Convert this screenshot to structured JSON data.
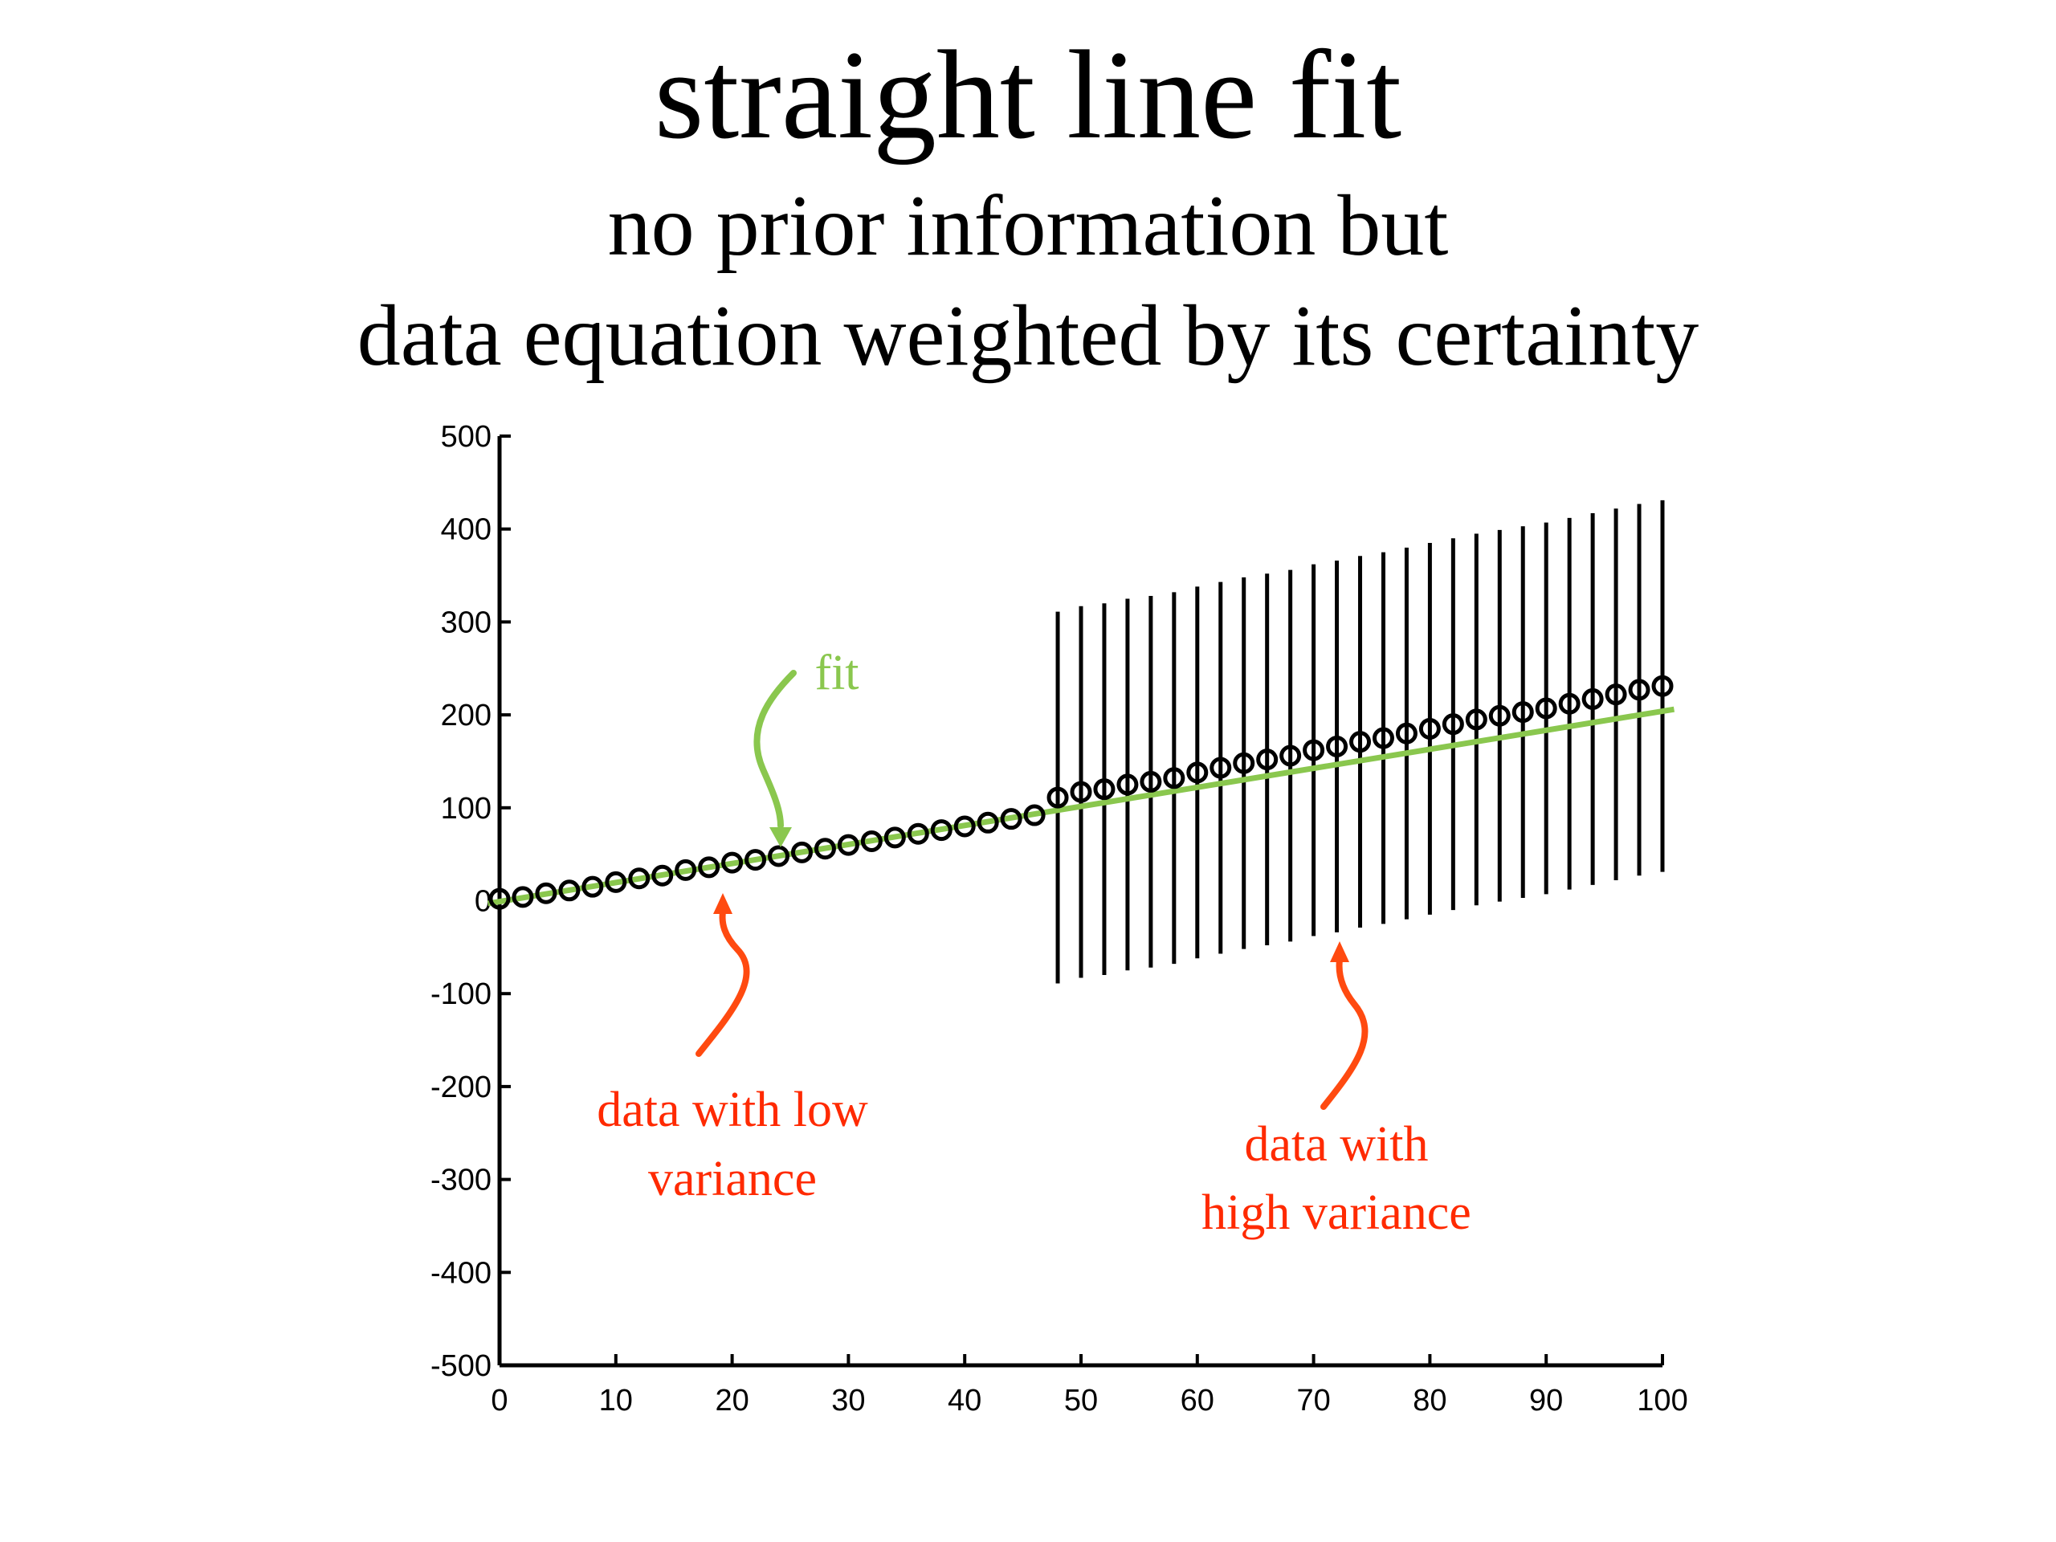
{
  "title": "straight line fit",
  "subtitle_line1": "no prior information but",
  "subtitle_line2": "data equation weighted by its certainty",
  "chart_data": {
    "type": "scatter",
    "xlim": [
      0,
      100
    ],
    "ylim": [
      -500,
      500
    ],
    "xticks": [
      0,
      10,
      20,
      30,
      40,
      50,
      60,
      70,
      80,
      90,
      100
    ],
    "yticks": [
      500,
      400,
      300,
      200,
      100,
      0,
      -100,
      -200,
      -300,
      -400,
      -500
    ],
    "grid": false,
    "series": [
      {
        "x": [
          0,
          2,
          4,
          6,
          8,
          10,
          12,
          14,
          16,
          18,
          20,
          22,
          24,
          26,
          28,
          30,
          32,
          34,
          36,
          38,
          40,
          42,
          44,
          46,
          48,
          50,
          52,
          54,
          56,
          58,
          60,
          62,
          64,
          66,
          68,
          70,
          72,
          74,
          76,
          78,
          80,
          82,
          84,
          86,
          88,
          90,
          92,
          94,
          96,
          98,
          100
        ],
        "y": [
          2,
          4,
          8,
          11,
          15,
          20,
          24,
          27,
          33,
          36,
          41,
          44,
          48,
          52,
          56,
          60,
          64,
          68,
          72,
          76,
          80,
          84,
          88,
          92,
          111,
          117,
          120,
          125,
          128,
          132,
          138,
          143,
          148,
          152,
          156,
          162,
          166,
          171,
          175,
          180,
          185,
          190,
          195,
          199,
          203,
          207,
          212,
          217,
          222,
          227,
          231
        ],
        "error_bars": "x >= 48: approximately ±200"
      }
    ],
    "fit_line": {
      "x": [
        -1,
        101
      ],
      "y": [
        -3,
        206
      ]
    },
    "annotations": [
      {
        "text": "fit",
        "color": "#8ac74e"
      },
      {
        "text": "data with low variance",
        "lines": [
          "data with low",
          "variance"
        ],
        "color": "#ff2a00"
      },
      {
        "text": "data with high variance",
        "lines": [
          "data with",
          "high variance"
        ],
        "color": "#ff2a00"
      }
    ],
    "colors": {
      "markers": "#000000",
      "fit": "#8ac74e",
      "annotation": "#ff2a00",
      "arrow_red": "#ff4a10"
    }
  }
}
